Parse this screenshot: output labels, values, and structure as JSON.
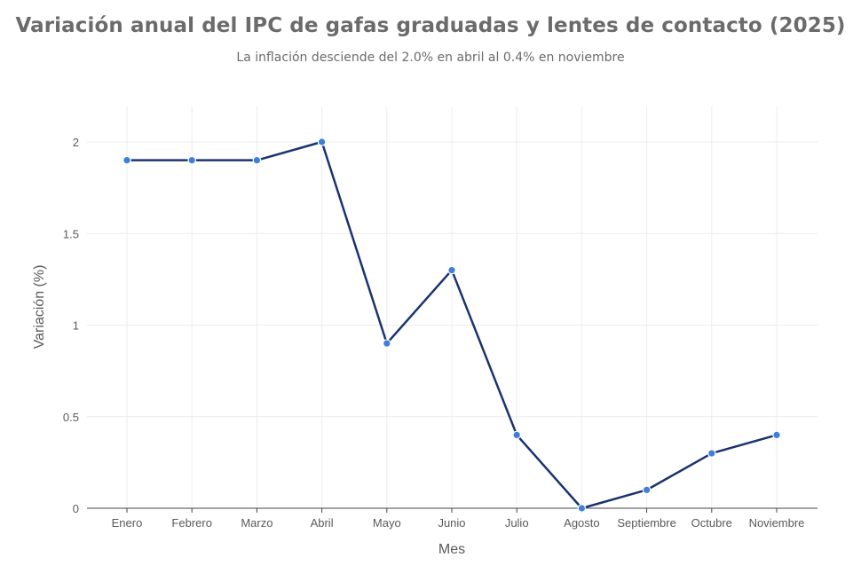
{
  "title": "Variación anual del IPC de gafas graduadas y lentes de contacto (2025)",
  "subtitle": "La inflación desciende del 2.0% en abril al 0.4% en noviembre",
  "colors": {
    "line": "#1a3370",
    "marker": "#3f7fdb",
    "marker_edge": "#ffffff",
    "grid": "#ececec",
    "axis": "#444444",
    "text": "#5a5a5a"
  },
  "chart_data": {
    "type": "line",
    "title": "Variación anual del IPC de gafas graduadas y lentes de contacto (2025)",
    "subtitle": "La inflación desciende del 2.0% en abril al 0.4% en noviembre",
    "xlabel": "Mes",
    "ylabel": "Variación (%)",
    "categories": [
      "Enero",
      "Febrero",
      "Marzo",
      "Abril",
      "Mayo",
      "Junio",
      "Julio",
      "Agosto",
      "Septiembre",
      "Octubre",
      "Noviembre"
    ],
    "series": [
      {
        "values": [
          1.9,
          1.9,
          1.9,
          2.0,
          0.9,
          1.3,
          0.4,
          0.0,
          0.1,
          0.3,
          0.4
        ]
      }
    ],
    "ylim": [
      0,
      2.2
    ],
    "yticks": [
      0,
      0.5,
      1,
      1.5,
      2
    ],
    "ytick_labels": [
      "0",
      "0.5",
      "1",
      "1.5",
      "2"
    ],
    "grid": true,
    "legend": "none"
  }
}
